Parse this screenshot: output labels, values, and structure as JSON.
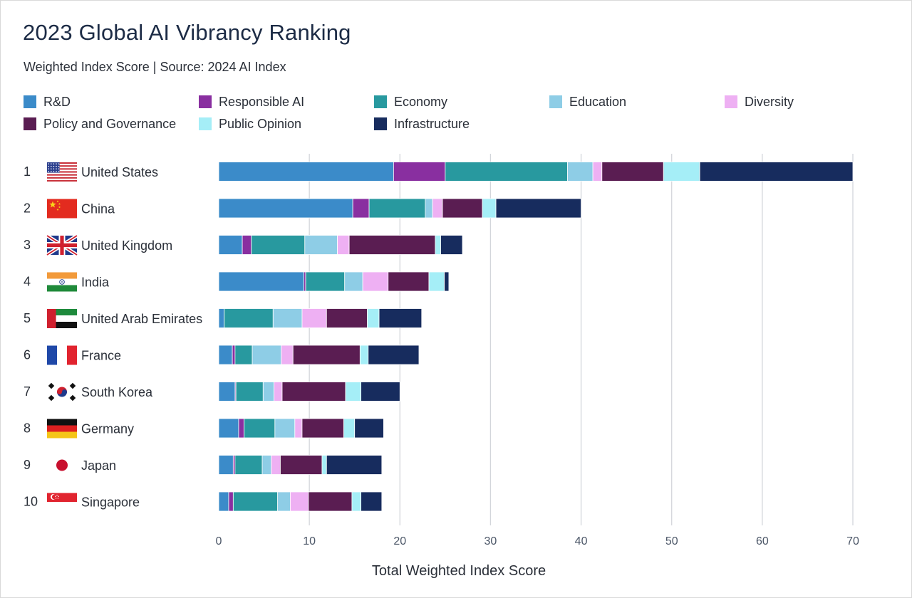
{
  "chart_data": {
    "type": "bar",
    "orientation": "horizontal",
    "stacked": true,
    "title": "2023 Global AI Vibrancy Ranking",
    "subtitle": "Weighted Index Score | Source: 2024 AI Index",
    "xlabel": "Total Weighted Index Score",
    "ylabel": "",
    "xlim": [
      0,
      70
    ],
    "xticks": [
      0,
      10,
      20,
      30,
      40,
      50,
      60,
      70
    ],
    "grid": "vertical",
    "legend_position": "top",
    "ranks": [
      "1",
      "2",
      "3",
      "4",
      "5",
      "6",
      "7",
      "8",
      "9",
      "10"
    ],
    "categories": [
      "United States",
      "China",
      "United Kingdom",
      "India",
      "United Arab Emirates",
      "France",
      "South Korea",
      "Germany",
      "Japan",
      "Singapore"
    ],
    "series": [
      {
        "name": "R&D",
        "color": "#3b8bc9",
        "values": [
          19.3,
          14.8,
          2.6,
          9.4,
          0.6,
          1.5,
          1.8,
          2.2,
          1.6,
          1.1
        ]
      },
      {
        "name": "Responsible AI",
        "color": "#892fa0",
        "values": [
          5.7,
          1.8,
          1.0,
          0.2,
          0.0,
          0.3,
          0.1,
          0.6,
          0.2,
          0.5
        ]
      },
      {
        "name": "Economy",
        "color": "#28999f",
        "values": [
          13.5,
          6.2,
          5.9,
          4.3,
          5.4,
          1.9,
          3.0,
          3.4,
          3.0,
          4.9
        ]
      },
      {
        "name": "Education",
        "color": "#8ecde6",
        "values": [
          2.8,
          0.8,
          3.6,
          2.0,
          3.2,
          3.2,
          1.2,
          2.2,
          1.0,
          1.4
        ]
      },
      {
        "name": "Diversity",
        "color": "#eeb0f3",
        "values": [
          1.0,
          1.1,
          1.3,
          2.8,
          2.7,
          1.3,
          0.9,
          0.8,
          1.0,
          2.0
        ]
      },
      {
        "name": "Policy and Governance",
        "color": "#5a1d52",
        "values": [
          6.8,
          4.4,
          9.5,
          4.5,
          4.5,
          7.4,
          7.0,
          4.6,
          4.6,
          4.8
        ]
      },
      {
        "name": "Public Opinion",
        "color": "#a5eef7",
        "values": [
          4.0,
          1.5,
          0.6,
          1.7,
          1.3,
          0.9,
          1.7,
          1.2,
          0.5,
          1.0
        ]
      },
      {
        "name": "Infrastructure",
        "color": "#172c5e",
        "values": [
          16.9,
          9.4,
          2.4,
          0.5,
          4.7,
          5.6,
          4.3,
          3.2,
          6.1,
          2.3
        ]
      }
    ],
    "flags": [
      "us-flag-icon",
      "china-flag-icon",
      "uk-flag-icon",
      "india-flag-icon",
      "uae-flag-icon",
      "france-flag-icon",
      "south-korea-flag-icon",
      "germany-flag-icon",
      "japan-flag-icon",
      "singapore-flag-icon"
    ]
  }
}
